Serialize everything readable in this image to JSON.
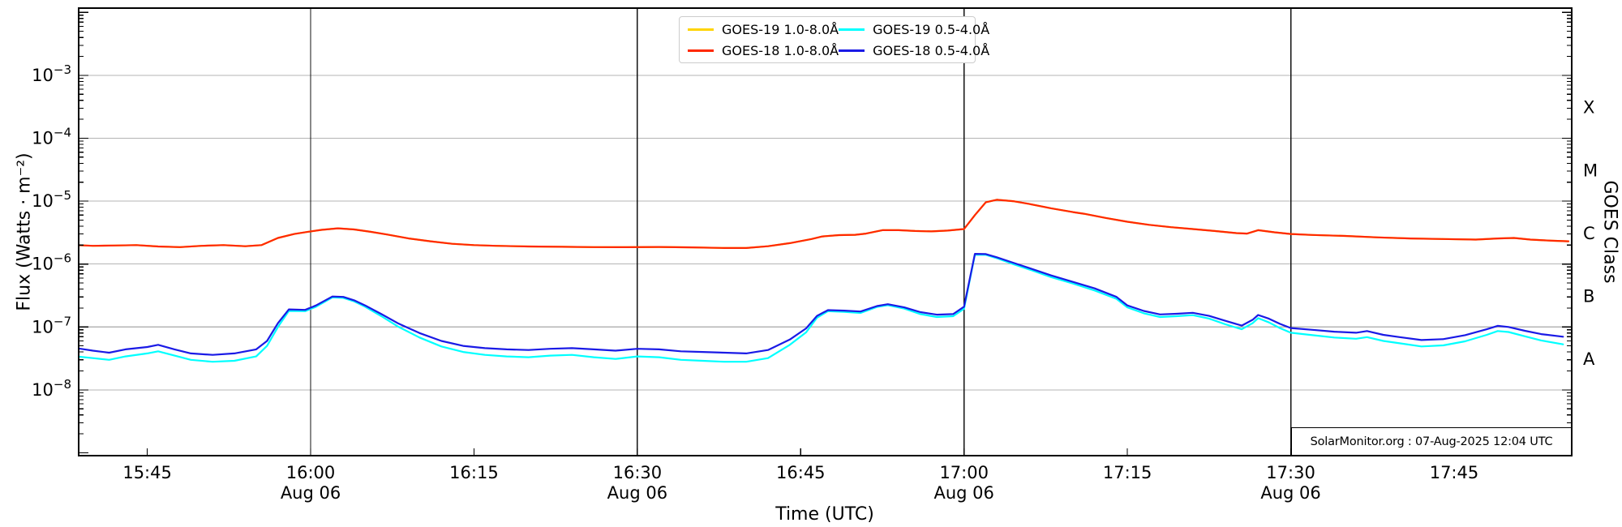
{
  "annotation": {
    "text": "SolarMonitor.org : 07-Aug-2025 12:04 UTC"
  },
  "legend": {
    "entries": [
      {
        "label": "GOES-19 1.0-8.0Å",
        "color": "#ffd400"
      },
      {
        "label": "GOES-18 1.0-8.0Å",
        "color": "#ff2800"
      },
      {
        "label": "GOES-19 0.5-4.0Å",
        "color": "#00ffff"
      },
      {
        "label": "GOES-18 0.5-4.0Å",
        "color": "#1a1ae6"
      }
    ]
  },
  "chart_data": {
    "type": "line",
    "title": "",
    "xlabel": "Time (UTC)",
    "ylabel": "Flux (Watts · m⁻²)",
    "ylabel_right": "GOES Class",
    "yscale": "log",
    "x_unit": "minutes of day, Aug 06 UTC (960 = 16:00)",
    "xlim": [
      938.7,
      1075.8
    ],
    "ylim": [
      9e-10,
      0.0117
    ],
    "grid_color": "#b4b4b4",
    "x_gridlines": [
      960,
      990,
      1020,
      1050
    ],
    "x_ticks": [
      {
        "t": 945,
        "label": "15:45"
      },
      {
        "t": 960,
        "label": "16:00",
        "day_label": "Aug 06"
      },
      {
        "t": 975,
        "label": "16:15"
      },
      {
        "t": 990,
        "label": "16:30",
        "day_label": "Aug 06"
      },
      {
        "t": 1005,
        "label": "16:45"
      },
      {
        "t": 1020,
        "label": "17:00",
        "day_label": "Aug 06"
      },
      {
        "t": 1035,
        "label": "17:15"
      },
      {
        "t": 1050,
        "label": "17:30",
        "day_label": "Aug 06"
      },
      {
        "t": 1065,
        "label": "17:45"
      }
    ],
    "y_ticks": [
      {
        "value": 0.001,
        "label": "10⁻³",
        "exp": -3
      },
      {
        "value": 0.0001,
        "label": "10⁻⁴",
        "exp": -4
      },
      {
        "value": 1e-05,
        "label": "10⁻⁵",
        "exp": -5
      },
      {
        "value": 1e-06,
        "label": "10⁻⁶",
        "exp": -6
      },
      {
        "value": 1e-07,
        "label": "10⁻⁷",
        "exp": -7
      },
      {
        "value": 1e-08,
        "label": "10⁻⁸",
        "exp": -8
      }
    ],
    "goes_classes": [
      {
        "label": "X",
        "value": 0.000316
      },
      {
        "label": "M",
        "value": 3.16e-05
      },
      {
        "label": "C",
        "value": 3.16e-06
      },
      {
        "label": "B",
        "value": 3.16e-07
      },
      {
        "label": "A",
        "value": 3.16e-08
      }
    ],
    "series": [
      {
        "name": "GOES-19 1.0-8.0Å",
        "color": "#ffd400",
        "coincides_with": "GOES-18 1.0-8.0Å"
      },
      {
        "name": "GOES-19 0.5-4.0Å",
        "color": "#00ffff",
        "points": [
          [
            938.5,
            3.4e-08
          ],
          [
            940,
            3.2e-08
          ],
          [
            941.5,
            3e-08
          ],
          [
            943,
            3.4e-08
          ],
          [
            945,
            3.8e-08
          ],
          [
            946,
            4.1e-08
          ],
          [
            947.5,
            3.5e-08
          ],
          [
            949,
            3e-08
          ],
          [
            951,
            2.8e-08
          ],
          [
            953,
            2.9e-08
          ],
          [
            955,
            3.4e-08
          ],
          [
            956,
            5e-08
          ],
          [
            957,
            1e-07
          ],
          [
            958,
            1.8e-07
          ],
          [
            959.5,
            1.78e-07
          ],
          [
            960.5,
            2.1e-07
          ],
          [
            962,
            2.95e-07
          ],
          [
            963,
            2.9e-07
          ],
          [
            964,
            2.55e-07
          ],
          [
            965,
            2.1e-07
          ],
          [
            966.5,
            1.48e-07
          ],
          [
            968,
            1.02e-07
          ],
          [
            970,
            6.8e-08
          ],
          [
            972,
            4.9e-08
          ],
          [
            974,
            4e-08
          ],
          [
            976,
            3.6e-08
          ],
          [
            978,
            3.4e-08
          ],
          [
            980,
            3.3e-08
          ],
          [
            982,
            3.5e-08
          ],
          [
            984,
            3.6e-08
          ],
          [
            986,
            3.3e-08
          ],
          [
            988,
            3.1e-08
          ],
          [
            990,
            3.4e-08
          ],
          [
            992,
            3.3e-08
          ],
          [
            994,
            3e-08
          ],
          [
            996,
            2.9e-08
          ],
          [
            998,
            2.8e-08
          ],
          [
            1000,
            2.8e-08
          ],
          [
            1002,
            3.2e-08
          ],
          [
            1004,
            5.2e-08
          ],
          [
            1005.5,
            8.2e-08
          ],
          [
            1006.5,
            1.4e-07
          ],
          [
            1007.5,
            1.78e-07
          ],
          [
            1009,
            1.74e-07
          ],
          [
            1010.5,
            1.67e-07
          ],
          [
            1012,
            2.08e-07
          ],
          [
            1013,
            2.22e-07
          ],
          [
            1014.5,
            1.96e-07
          ],
          [
            1016,
            1.6e-07
          ],
          [
            1017.5,
            1.44e-07
          ],
          [
            1019,
            1.48e-07
          ],
          [
            1020,
            1.95e-07
          ],
          [
            1021,
            1.41e-06
          ],
          [
            1022,
            1.4e-06
          ],
          [
            1023,
            1.24e-06
          ],
          [
            1024.5,
            1e-06
          ],
          [
            1026,
            8.2e-07
          ],
          [
            1028,
            6.2e-07
          ],
          [
            1030,
            4.9e-07
          ],
          [
            1032,
            3.8e-07
          ],
          [
            1034,
            2.8e-07
          ],
          [
            1035,
            2.05e-07
          ],
          [
            1036.5,
            1.65e-07
          ],
          [
            1038,
            1.44e-07
          ],
          [
            1039.5,
            1.48e-07
          ],
          [
            1041,
            1.54e-07
          ],
          [
            1042.5,
            1.36e-07
          ],
          [
            1044,
            1.1e-07
          ],
          [
            1045.5,
            9.2e-08
          ],
          [
            1046.5,
            1.15e-07
          ],
          [
            1047,
            1.38e-07
          ],
          [
            1048,
            1.18e-07
          ],
          [
            1049,
            9.6e-08
          ],
          [
            1050,
            8.1e-08
          ],
          [
            1052,
            7.4e-08
          ],
          [
            1054,
            6.8e-08
          ],
          [
            1056,
            6.5e-08
          ],
          [
            1057,
            6.9e-08
          ],
          [
            1058.5,
            6e-08
          ],
          [
            1060,
            5.5e-08
          ],
          [
            1062,
            4.9e-08
          ],
          [
            1064,
            5.1e-08
          ],
          [
            1066,
            5.9e-08
          ],
          [
            1068,
            7.5e-08
          ],
          [
            1069,
            8.6e-08
          ],
          [
            1070,
            8.3e-08
          ],
          [
            1071.5,
            7.1e-08
          ],
          [
            1073,
            6.1e-08
          ],
          [
            1075,
            5.3e-08
          ]
        ]
      },
      {
        "name": "GOES-18 0.5-4.0Å",
        "color": "#1a1ae6",
        "points": [
          [
            938.5,
            4.6e-08
          ],
          [
            940,
            4.2e-08
          ],
          [
            941.5,
            3.9e-08
          ],
          [
            943,
            4.4e-08
          ],
          [
            945,
            4.8e-08
          ],
          [
            946,
            5.2e-08
          ],
          [
            947.5,
            4.4e-08
          ],
          [
            949,
            3.8e-08
          ],
          [
            951,
            3.6e-08
          ],
          [
            953,
            3.8e-08
          ],
          [
            955,
            4.4e-08
          ],
          [
            956,
            6e-08
          ],
          [
            957,
            1.15e-07
          ],
          [
            958,
            1.9e-07
          ],
          [
            959.5,
            1.87e-07
          ],
          [
            960.5,
            2.2e-07
          ],
          [
            962,
            3.05e-07
          ],
          [
            963,
            3e-07
          ],
          [
            964,
            2.65e-07
          ],
          [
            965,
            2.2e-07
          ],
          [
            966.5,
            1.6e-07
          ],
          [
            968,
            1.15e-07
          ],
          [
            970,
            8e-08
          ],
          [
            972,
            6e-08
          ],
          [
            974,
            5e-08
          ],
          [
            976,
            4.6e-08
          ],
          [
            978,
            4.4e-08
          ],
          [
            980,
            4.3e-08
          ],
          [
            982,
            4.5e-08
          ],
          [
            984,
            4.6e-08
          ],
          [
            986,
            4.4e-08
          ],
          [
            988,
            4.2e-08
          ],
          [
            990,
            4.5e-08
          ],
          [
            992,
            4.4e-08
          ],
          [
            994,
            4.1e-08
          ],
          [
            996,
            4e-08
          ],
          [
            998,
            3.9e-08
          ],
          [
            1000,
            3.8e-08
          ],
          [
            1002,
            4.3e-08
          ],
          [
            1004,
            6.3e-08
          ],
          [
            1005.5,
            9.5e-08
          ],
          [
            1006.5,
            1.5e-07
          ],
          [
            1007.5,
            1.85e-07
          ],
          [
            1009,
            1.82e-07
          ],
          [
            1010.5,
            1.76e-07
          ],
          [
            1012,
            2.15e-07
          ],
          [
            1013,
            2.3e-07
          ],
          [
            1014.5,
            2.05e-07
          ],
          [
            1016,
            1.72e-07
          ],
          [
            1017.5,
            1.57e-07
          ],
          [
            1019,
            1.6e-07
          ],
          [
            1020,
            2.1e-07
          ],
          [
            1021,
            1.45e-06
          ],
          [
            1022,
            1.44e-06
          ],
          [
            1023,
            1.28e-06
          ],
          [
            1024.5,
            1.05e-06
          ],
          [
            1026,
            8.6e-07
          ],
          [
            1028,
            6.6e-07
          ],
          [
            1030,
            5.2e-07
          ],
          [
            1032,
            4.1e-07
          ],
          [
            1034,
            3e-07
          ],
          [
            1035,
            2.2e-07
          ],
          [
            1036.5,
            1.8e-07
          ],
          [
            1038,
            1.58e-07
          ],
          [
            1039.5,
            1.62e-07
          ],
          [
            1041,
            1.68e-07
          ],
          [
            1042.5,
            1.5e-07
          ],
          [
            1044,
            1.25e-07
          ],
          [
            1045.5,
            1.05e-07
          ],
          [
            1046.5,
            1.3e-07
          ],
          [
            1047,
            1.55e-07
          ],
          [
            1048,
            1.35e-07
          ],
          [
            1049,
            1.12e-07
          ],
          [
            1050,
            9.6e-08
          ],
          [
            1052,
            9e-08
          ],
          [
            1054,
            8.4e-08
          ],
          [
            1056,
            8.1e-08
          ],
          [
            1057,
            8.6e-08
          ],
          [
            1058.5,
            7.5e-08
          ],
          [
            1060,
            6.9e-08
          ],
          [
            1062,
            6.2e-08
          ],
          [
            1064,
            6.4e-08
          ],
          [
            1066,
            7.4e-08
          ],
          [
            1068,
            9.2e-08
          ],
          [
            1069,
            1.04e-07
          ],
          [
            1070,
            1e-07
          ],
          [
            1071.5,
            8.7e-08
          ],
          [
            1073,
            7.7e-08
          ],
          [
            1075,
            7e-08
          ]
        ]
      },
      {
        "name": "GOES-18 1.0-8.0Å",
        "color": "#ff2800",
        "points": [
          [
            938.5,
            2e-06
          ],
          [
            940,
            1.95e-06
          ],
          [
            942,
            1.97e-06
          ],
          [
            944,
            2e-06
          ],
          [
            946,
            1.9e-06
          ],
          [
            948,
            1.86e-06
          ],
          [
            950,
            1.95e-06
          ],
          [
            952,
            2e-06
          ],
          [
            954,
            1.92e-06
          ],
          [
            955.5,
            2e-06
          ],
          [
            957,
            2.6e-06
          ],
          [
            958.5,
            3e-06
          ],
          [
            960,
            3.3e-06
          ],
          [
            961,
            3.5e-06
          ],
          [
            962.5,
            3.7e-06
          ],
          [
            964,
            3.55e-06
          ],
          [
            965.5,
            3.25e-06
          ],
          [
            967,
            2.95e-06
          ],
          [
            969,
            2.55e-06
          ],
          [
            971,
            2.3e-06
          ],
          [
            973,
            2.1e-06
          ],
          [
            975,
            2e-06
          ],
          [
            977,
            1.95e-06
          ],
          [
            980,
            1.9e-06
          ],
          [
            983,
            1.88e-06
          ],
          [
            986,
            1.86e-06
          ],
          [
            989,
            1.85e-06
          ],
          [
            992,
            1.87e-06
          ],
          [
            995,
            1.84e-06
          ],
          [
            998,
            1.8e-06
          ],
          [
            1000,
            1.8e-06
          ],
          [
            1002,
            1.92e-06
          ],
          [
            1004,
            2.15e-06
          ],
          [
            1006,
            2.5e-06
          ],
          [
            1007,
            2.75e-06
          ],
          [
            1008.5,
            2.88e-06
          ],
          [
            1010,
            2.92e-06
          ],
          [
            1011,
            3.05e-06
          ],
          [
            1012.5,
            3.45e-06
          ],
          [
            1014,
            3.45e-06
          ],
          [
            1015.5,
            3.35e-06
          ],
          [
            1017,
            3.3e-06
          ],
          [
            1018.5,
            3.4e-06
          ],
          [
            1020,
            3.6e-06
          ],
          [
            1021,
            6e-06
          ],
          [
            1022,
            9.6e-06
          ],
          [
            1023,
            1.05e-05
          ],
          [
            1024.5,
            1e-05
          ],
          [
            1026,
            9e-06
          ],
          [
            1028,
            7.7e-06
          ],
          [
            1030,
            6.7e-06
          ],
          [
            1031,
            6.3e-06
          ],
          [
            1033,
            5.4e-06
          ],
          [
            1035,
            4.7e-06
          ],
          [
            1037,
            4.2e-06
          ],
          [
            1039,
            3.85e-06
          ],
          [
            1041,
            3.6e-06
          ],
          [
            1043,
            3.35e-06
          ],
          [
            1045,
            3.1e-06
          ],
          [
            1046,
            3.05e-06
          ],
          [
            1047,
            3.45e-06
          ],
          [
            1048.5,
            3.2e-06
          ],
          [
            1050,
            3e-06
          ],
          [
            1052,
            2.9e-06
          ],
          [
            1055,
            2.8e-06
          ],
          [
            1058,
            2.65e-06
          ],
          [
            1061,
            2.55e-06
          ],
          [
            1064,
            2.5e-06
          ],
          [
            1067,
            2.45e-06
          ],
          [
            1069,
            2.55e-06
          ],
          [
            1070.5,
            2.6e-06
          ],
          [
            1072,
            2.45e-06
          ],
          [
            1074,
            2.35e-06
          ],
          [
            1075.5,
            2.3e-06
          ]
        ]
      }
    ]
  }
}
